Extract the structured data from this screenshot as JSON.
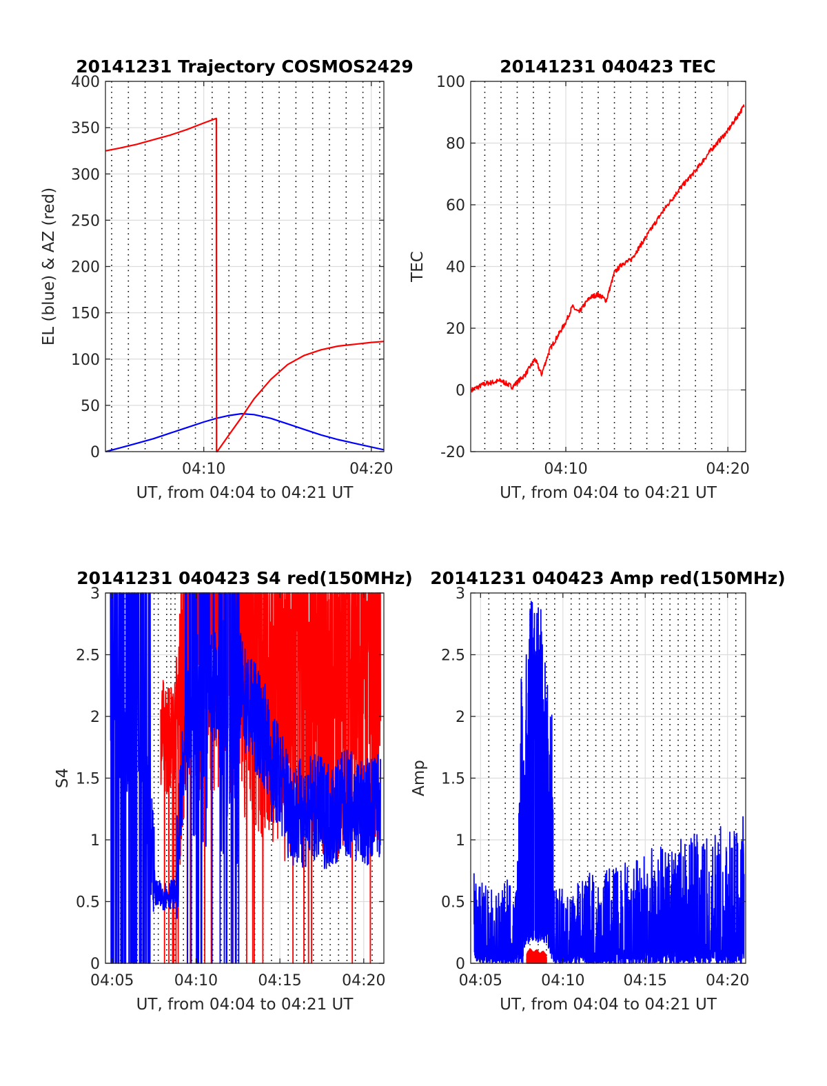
{
  "colors": {
    "el": "#0000ff",
    "az": "#ff0000",
    "tec": "#ff0000",
    "s4_red": "#ff0000",
    "s4_blue": "#0000ff",
    "amp_blue": "#0000ff",
    "amp_red": "#ff0000",
    "grid": "#dcdcdc"
  },
  "chart_data": [
    {
      "type": "line",
      "title": "20141231 Trajectory COSMOS2429",
      "xlabel": "UT, from 04:04 to 04:21 UT",
      "ylabel": "EL (blue) & AZ (red)",
      "xlim": [
        4.13,
        20.75
      ],
      "ylim": [
        0,
        400
      ],
      "yticks": [
        0,
        50,
        100,
        150,
        200,
        250,
        300,
        350,
        400
      ],
      "xticks": [
        10,
        20
      ],
      "xticklabels": [
        "04:10",
        "04:20"
      ],
      "grid": true,
      "series": [
        {
          "color": "el",
          "x": [
            4.15,
            5.0,
            6.0,
            7.0,
            8.0,
            9.0,
            10.0,
            10.75,
            11.5,
            12.25,
            13.0,
            14.0,
            15.0,
            16.0,
            17.0,
            18.0,
            19.0,
            20.0,
            20.75
          ],
          "y": [
            0,
            4,
            9,
            14,
            20,
            26,
            32,
            36,
            39,
            41,
            40,
            36,
            30,
            24,
            18,
            13,
            9,
            5,
            2
          ]
        },
        {
          "color": "az",
          "x": [
            4.15,
            5.0,
            6.0,
            7.0,
            8.0,
            9.0,
            10.0,
            10.75,
            10.76,
            10.8,
            11.5,
            12.25,
            13.0,
            14.0,
            15.0,
            16.0,
            17.0,
            18.0,
            19.0,
            20.0,
            20.75
          ],
          "y": [
            325,
            328,
            332,
            337,
            342,
            348,
            355,
            360,
            0,
            0,
            18,
            37,
            57,
            78,
            94,
            104,
            110,
            114,
            116,
            118,
            119
          ]
        }
      ]
    },
    {
      "type": "line",
      "title": "20141231 040423 TEC",
      "xlabel": "UT, from 04:04 to 04:21 UT",
      "ylabel": "TEC",
      "xlim": [
        4.13,
        21.1
      ],
      "ylim": [
        -20,
        100
      ],
      "yticks": [
        -20,
        0,
        20,
        40,
        60,
        80,
        100
      ],
      "xticks": [
        10,
        20
      ],
      "xticklabels": [
        "04:10",
        "04:20"
      ],
      "grid": true,
      "series": [
        {
          "color": "tec",
          "x": [
            4.2,
            5.0,
            6.0,
            6.7,
            7.5,
            8.1,
            8.5,
            9.0,
            10.0,
            10.4,
            10.8,
            11.2,
            11.5,
            12.0,
            12.5,
            13.0,
            13.5,
            14.0,
            15.0,
            16.0,
            17.0,
            18.0,
            19.0,
            20.0,
            21.0
          ],
          "y": [
            0,
            2,
            3,
            1,
            5,
            10,
            5,
            13,
            22,
            27,
            25,
            28,
            30,
            31,
            29,
            38,
            41,
            42,
            50,
            58,
            65,
            71,
            78,
            84,
            92
          ]
        }
      ]
    },
    {
      "type": "line",
      "title": "20141231 040423 S4 red(150MHz)",
      "xlabel": "UT, from 04:04 to 04:21 UT",
      "ylabel": "S4",
      "xlim": [
        4.6,
        21.2
      ],
      "ylim": [
        0,
        3
      ],
      "yticks": [
        0,
        0.5,
        1,
        1.5,
        2,
        2.5,
        3
      ],
      "ytickLabels": [
        "0",
        "0.5",
        "1",
        "1.5",
        "2",
        "2.5",
        "3"
      ],
      "xticks": [
        5,
        10,
        15,
        20
      ],
      "xticklabels": [
        "04:05",
        "04:10",
        "04:15",
        "04:20"
      ],
      "grid": true,
      "series": [
        {
          "color": "s4_red",
          "x": [
            7.9,
            8.3,
            8.7,
            9.1,
            9.5,
            10.5,
            11.5,
            12.5,
            13.5,
            14.5,
            15.5,
            16.5,
            17.5,
            18.5,
            19.5,
            20.5,
            21.0
          ],
          "y": [
            1.9,
            1.8,
            1.9,
            2.4,
            3.0,
            3.0,
            3.0,
            2.9,
            2.6,
            2.5,
            2.4,
            2.6,
            2.5,
            2.4,
            2.6,
            2.7,
            2.5
          ]
        },
        {
          "color": "s4_blue",
          "x": [
            4.9,
            5.5,
            6.5,
            7.2,
            7.6,
            8.2,
            8.8,
            9.2,
            10.0,
            11.0,
            12.0,
            13.0,
            14.0,
            14.5,
            15.0,
            15.5,
            16.0,
            17.0,
            18.0,
            19.0,
            20.0,
            21.0
          ],
          "y": [
            2.5,
            1.5,
            2.0,
            1.2,
            0.55,
            0.55,
            0.57,
            1.5,
            2.6,
            2.2,
            2.5,
            2.1,
            1.9,
            1.6,
            1.5,
            1.3,
            1.2,
            1.25,
            1.2,
            1.3,
            1.2,
            1.3
          ]
        }
      ]
    },
    {
      "type": "line",
      "title": "20141231 040423 Amp red(150MHz)",
      "xlabel": "UT, from 04:04 to 04:21 UT",
      "ylabel": "Amp",
      "xlim": [
        4.4,
        21.1
      ],
      "ylim": [
        0,
        3
      ],
      "yticks": [
        0,
        0.5,
        1,
        1.5,
        2,
        2.5,
        3
      ],
      "ytickLabels": [
        "0",
        "0.5",
        "1",
        "1.5",
        "2",
        "2.5",
        "3"
      ],
      "xticks": [
        5,
        10,
        15,
        20
      ],
      "xticklabels": [
        "04:05",
        "04:10",
        "04:15",
        "04:20"
      ],
      "grid": true,
      "series": [
        {
          "color": "amp_blue",
          "x": [
            4.6,
            5.5,
            6.5,
            7.2,
            7.6,
            8.0,
            8.5,
            9.0,
            9.5,
            10.5,
            11.5,
            12.5,
            13.5,
            14.5,
            15.5,
            16.5,
            17.5,
            18.5,
            19.5,
            20.5,
            21.0
          ],
          "y": [
            0.35,
            0.3,
            0.35,
            0.3,
            1.5,
            2.4,
            2.3,
            2.2,
            0.3,
            0.3,
            0.35,
            0.35,
            0.4,
            0.4,
            0.45,
            0.45,
            0.5,
            0.5,
            0.55,
            0.55,
            0.6
          ]
        },
        {
          "color": "amp_red",
          "x": [
            7.8,
            8.0,
            8.2,
            8.4,
            8.6,
            8.8,
            9.0
          ],
          "y": [
            0.02,
            0.06,
            0.03,
            0.05,
            0.02,
            0.04,
            0.01
          ]
        }
      ]
    }
  ]
}
